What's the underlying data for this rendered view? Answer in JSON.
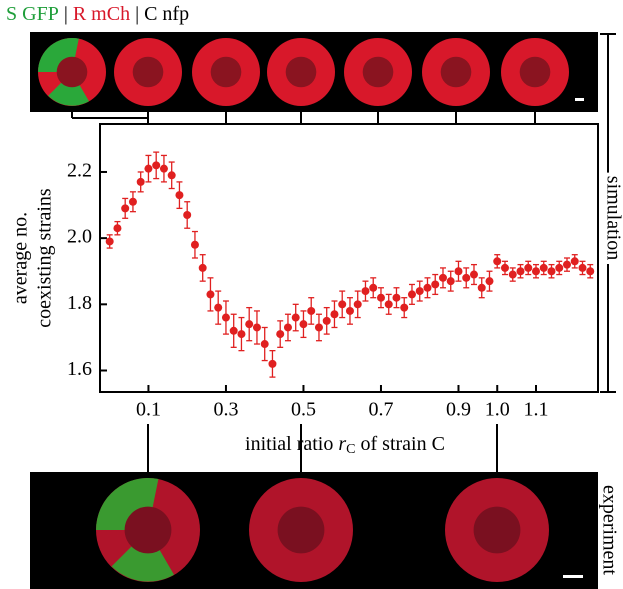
{
  "legend_text": [
    {
      "text": "S GFP",
      "color": "#1f9e3a"
    },
    {
      "text": "|",
      "color": "#000000"
    },
    {
      "text": "R mCh",
      "color": "#d8182a"
    },
    {
      "text": "| C nfp",
      "color": "#000000"
    }
  ],
  "side_labels": {
    "top": "simulation",
    "bottom": "experiment"
  },
  "chart_data": {
    "type": "scatter",
    "ylabel": [
      "average no.",
      "coexisting strains"
    ],
    "xlabel": {
      "before": "initial ratio ",
      "symbol": "r",
      "subscript": "C",
      "after": " of strain C"
    },
    "xlim": [
      -0.025,
      1.26
    ],
    "ylim": [
      1.535,
      2.345
    ],
    "xticks": [
      0.1,
      0.3,
      0.5,
      0.7,
      0.9,
      {
        "value": 1.0,
        "label": "1.0"
      },
      1.1
    ],
    "yticks": [
      1.6,
      1.8,
      {
        "value": 2.0,
        "label": "2.0"
      },
      2.2
    ],
    "series": [
      {
        "color": "#e02020",
        "x": [
          0,
          0.02,
          0.04,
          0.06,
          0.08,
          0.1,
          0.12,
          0.14,
          0.16,
          0.18,
          0.2,
          0.22,
          0.24,
          0.26,
          0.28,
          0.3,
          0.32,
          0.34,
          0.36,
          0.38,
          0.4,
          0.42,
          0.44,
          0.46,
          0.48,
          0.5,
          0.52,
          0.54,
          0.56,
          0.58,
          0.6,
          0.62,
          0.64,
          0.66,
          0.68,
          0.7,
          0.72,
          0.74,
          0.76,
          0.78,
          0.8,
          0.82,
          0.84,
          0.86,
          0.88,
          0.9,
          0.92,
          0.94,
          0.96,
          0.98,
          1.0,
          1.02,
          1.04,
          1.06,
          1.08,
          1.1,
          1.12,
          1.14,
          1.16,
          1.18,
          1.2,
          1.22,
          1.24
        ],
        "values": [
          1.99,
          2.03,
          2.09,
          2.11,
          2.17,
          2.21,
          2.22,
          2.21,
          2.19,
          2.13,
          2.07,
          1.98,
          1.91,
          1.83,
          1.79,
          1.76,
          1.72,
          1.71,
          1.74,
          1.73,
          1.68,
          1.62,
          1.71,
          1.73,
          1.76,
          1.74,
          1.78,
          1.73,
          1.75,
          1.77,
          1.8,
          1.78,
          1.8,
          1.84,
          1.85,
          1.82,
          1.8,
          1.82,
          1.79,
          1.83,
          1.84,
          1.85,
          1.86,
          1.88,
          1.87,
          1.9,
          1.88,
          1.89,
          1.85,
          1.87,
          1.93,
          1.91,
          1.89,
          1.9,
          1.91,
          1.9,
          1.91,
          1.9,
          1.91,
          1.92,
          1.93,
          1.91,
          1.9
        ],
        "errors": [
          0.02,
          0.02,
          0.03,
          0.03,
          0.03,
          0.04,
          0.04,
          0.04,
          0.04,
          0.04,
          0.04,
          0.04,
          0.04,
          0.05,
          0.05,
          0.05,
          0.05,
          0.05,
          0.05,
          0.05,
          0.05,
          0.04,
          0.04,
          0.04,
          0.04,
          0.04,
          0.04,
          0.04,
          0.04,
          0.04,
          0.04,
          0.04,
          0.04,
          0.03,
          0.03,
          0.03,
          0.03,
          0.03,
          0.03,
          0.03,
          0.03,
          0.03,
          0.03,
          0.03,
          0.03,
          0.03,
          0.03,
          0.03,
          0.03,
          0.03,
          0.02,
          0.02,
          0.02,
          0.02,
          0.02,
          0.02,
          0.02,
          0.02,
          0.02,
          0.02,
          0.02,
          0.02,
          0.02
        ]
      }
    ]
  }
}
